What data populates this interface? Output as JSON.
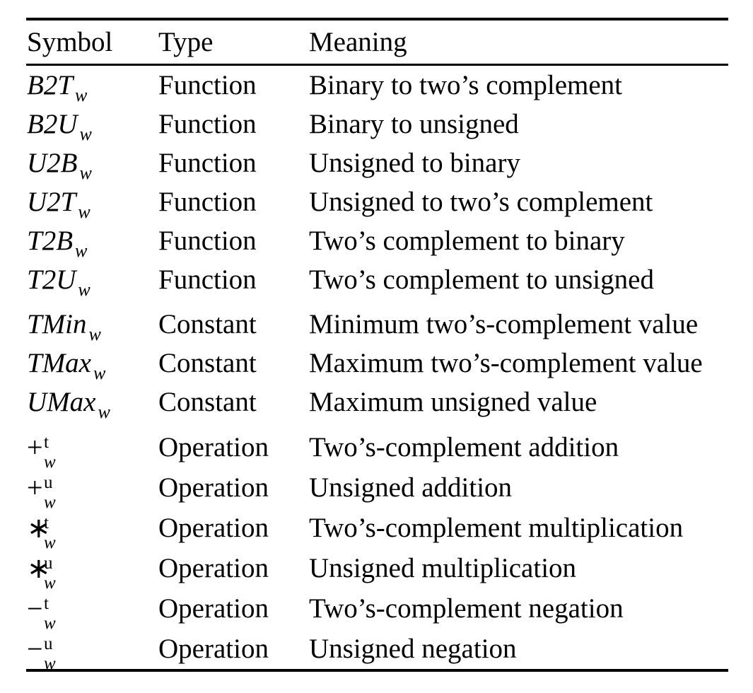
{
  "page": {
    "background": "#ffffff",
    "text_color": "#000000",
    "rule_color": "#000000"
  },
  "table": {
    "header": {
      "symbol": "Symbol",
      "type": "Type",
      "meaning": "Meaning"
    },
    "groups": [
      "Function",
      "Constant",
      "Operation"
    ],
    "rows": [
      {
        "symbol": {
          "base": "B2T",
          "sub": "w"
        },
        "type": "Function",
        "meaning": "Binary to two’s complement"
      },
      {
        "symbol": {
          "base": "B2U",
          "sub": "w"
        },
        "type": "Function",
        "meaning": "Binary to unsigned"
      },
      {
        "symbol": {
          "base": "U2B",
          "sub": "w"
        },
        "type": "Function",
        "meaning": "Unsigned to binary"
      },
      {
        "symbol": {
          "base": "U2T",
          "sub": "w"
        },
        "type": "Function",
        "meaning": "Unsigned to two’s complement"
      },
      {
        "symbol": {
          "base": "T2B",
          "sub": "w"
        },
        "type": "Function",
        "meaning": "Two’s complement to binary"
      },
      {
        "symbol": {
          "base": "T2U",
          "sub": "w"
        },
        "type": "Function",
        "meaning": "Two’s complement to unsigned"
      },
      {
        "symbol": {
          "base": "TMin",
          "sub": "w"
        },
        "type": "Constant",
        "meaning": "Minimum two’s-complement value"
      },
      {
        "symbol": {
          "base": "TMax",
          "sub": "w"
        },
        "type": "Constant",
        "meaning": "Maximum two’s-complement value"
      },
      {
        "symbol": {
          "base": "UMax",
          "sub": "w"
        },
        "type": "Constant",
        "meaning": "Maximum unsigned value"
      },
      {
        "symbol": {
          "base": "+",
          "sup": "t",
          "sub": "w"
        },
        "type": "Operation",
        "meaning": "Two’s-complement addition"
      },
      {
        "symbol": {
          "base": "+",
          "sup": "u",
          "sub": "w"
        },
        "type": "Operation",
        "meaning": "Unsigned addition"
      },
      {
        "symbol": {
          "base": "∗",
          "sup": "t",
          "sub": "w"
        },
        "type": "Operation",
        "meaning": "Two’s-complement multiplication"
      },
      {
        "symbol": {
          "base": "∗",
          "sup": "u",
          "sub": "w"
        },
        "type": "Operation",
        "meaning": "Unsigned multiplication"
      },
      {
        "symbol": {
          "base": "−",
          "sup": "t",
          "sub": "w"
        },
        "type": "Operation",
        "meaning": "Two’s-complement negation"
      },
      {
        "symbol": {
          "base": "−",
          "sup": "u",
          "sub": "w"
        },
        "type": "Operation",
        "meaning": "Unsigned negation"
      }
    ]
  }
}
